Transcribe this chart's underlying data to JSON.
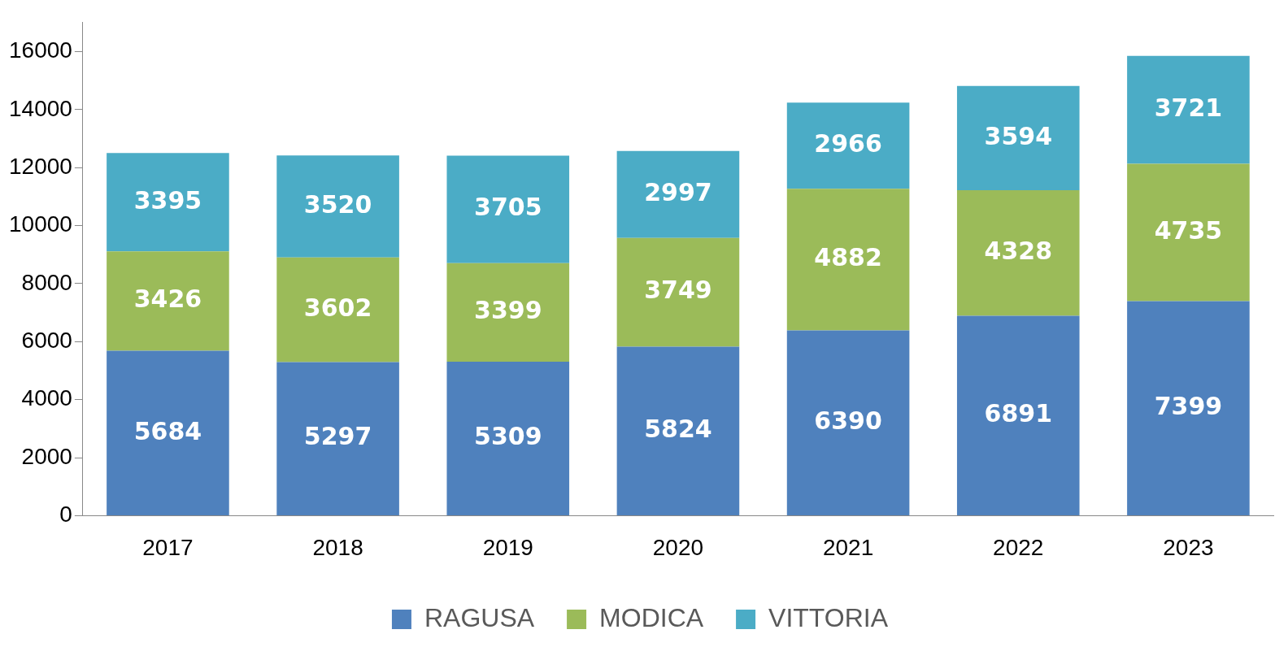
{
  "chart_data": {
    "type": "bar",
    "stacked": true,
    "categories": [
      "2017",
      "2018",
      "2019",
      "2020",
      "2021",
      "2022",
      "2023"
    ],
    "series": [
      {
        "name": "RAGUSA",
        "color": "#4f81bd",
        "values": [
          5684,
          5297,
          5309,
          5824,
          6390,
          6891,
          7399
        ]
      },
      {
        "name": "MODICA",
        "color": "#9bbb59",
        "values": [
          3426,
          3602,
          3399,
          3749,
          4882,
          4328,
          4735
        ]
      },
      {
        "name": "VITTORIA",
        "color": "#4bacc6",
        "values": [
          3395,
          3520,
          3705,
          2997,
          2966,
          3594,
          3721
        ]
      }
    ],
    "ylim": [
      0,
      17000
    ],
    "yticks": [
      0,
      2000,
      4000,
      6000,
      8000,
      10000,
      12000,
      14000,
      16000
    ],
    "grid": false,
    "legend": "bottom",
    "data_labels": true
  }
}
